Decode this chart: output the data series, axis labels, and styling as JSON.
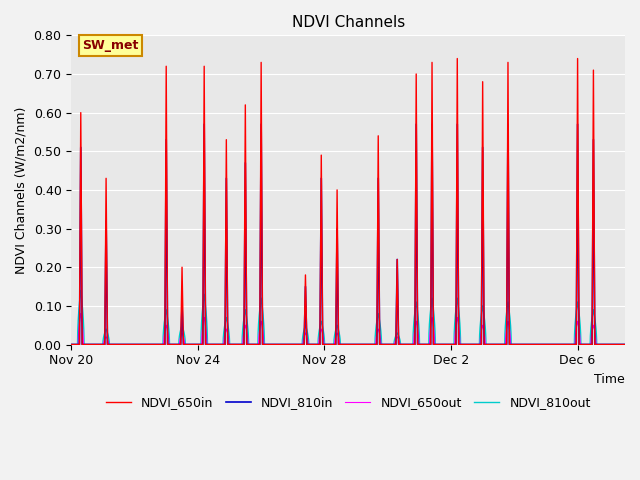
{
  "title": "NDVI Channels",
  "xlabel": "Time",
  "ylabel": "NDVI Channels (W/m2/nm)",
  "ylim": [
    0.0,
    0.8
  ],
  "fig_facecolor": "#f2f2f2",
  "plot_bg_color": "#e8e8e8",
  "annotation_text": "SW_met",
  "annotation_facecolor": "#ffff99",
  "annotation_edgecolor": "#cc8800",
  "annotation_textcolor": "#880000",
  "legend_labels": [
    "NDVI_650in",
    "NDVI_810in",
    "NDVI_650out",
    "NDVI_810out"
  ],
  "line_colors": [
    "#ff0000",
    "#0000cc",
    "#ff00ff",
    "#00cccc"
  ],
  "xtick_labels": [
    "Nov 20",
    "Nov 24",
    "Nov 28",
    "Dec 2",
    "Dec 6"
  ],
  "xtick_positions": [
    0,
    4,
    8,
    12,
    16
  ],
  "total_days": 17.5,
  "grid_color": "#ffffff",
  "spike_times": [
    0.3,
    1.1,
    3.0,
    3.5,
    4.2,
    4.9,
    5.5,
    6.0,
    7.4,
    7.9,
    8.4,
    9.7,
    10.3,
    10.9,
    11.4,
    12.2,
    13.0,
    13.8,
    16.0,
    16.5
  ],
  "peaks_650in": [
    0.6,
    0.43,
    0.72,
    0.2,
    0.72,
    0.53,
    0.62,
    0.73,
    0.18,
    0.49,
    0.4,
    0.54,
    0.22,
    0.7,
    0.73,
    0.74,
    0.68,
    0.73,
    0.74,
    0.71
  ],
  "peaks_810in": [
    0.51,
    0.32,
    0.53,
    0.1,
    0.57,
    0.43,
    0.47,
    0.57,
    0.15,
    0.43,
    0.3,
    0.43,
    0.22,
    0.57,
    0.57,
    0.57,
    0.51,
    0.57,
    0.57,
    0.53
  ],
  "peaks_650out": [
    0.08,
    0.02,
    0.05,
    0.03,
    0.07,
    0.04,
    0.05,
    0.06,
    0.03,
    0.04,
    0.03,
    0.04,
    0.02,
    0.06,
    0.07,
    0.07,
    0.05,
    0.06,
    0.06,
    0.05
  ],
  "peaks_810out": [
    0.14,
    0.04,
    0.09,
    0.05,
    0.13,
    0.07,
    0.09,
    0.12,
    0.05,
    0.06,
    0.05,
    0.08,
    0.03,
    0.11,
    0.12,
    0.12,
    0.1,
    0.11,
    0.11,
    0.09
  ]
}
